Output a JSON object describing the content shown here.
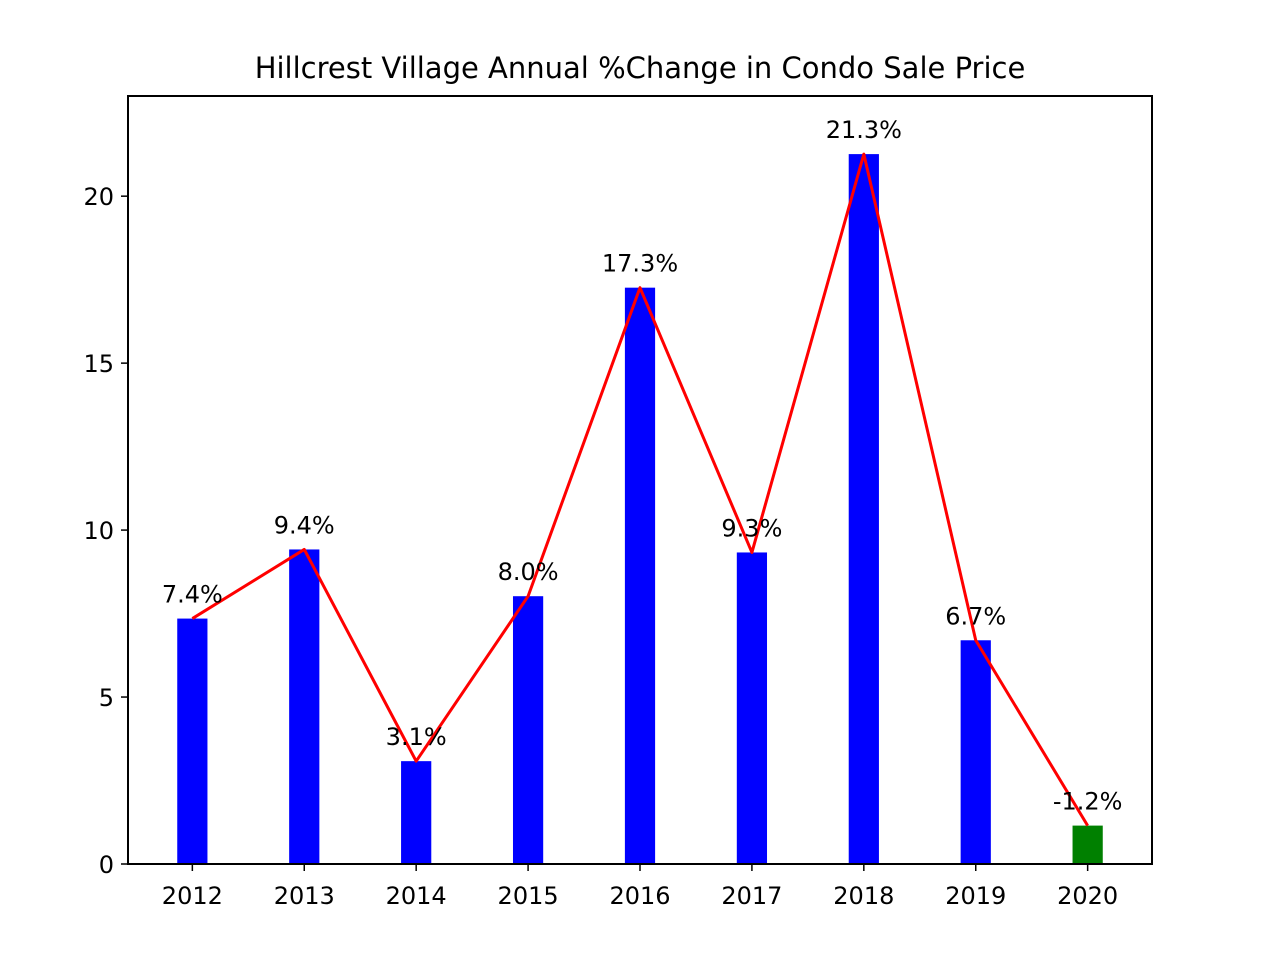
{
  "chart_data": {
    "type": "bar",
    "title": "Hillcrest Village Annual %Change in Condo Sale Price",
    "xlabel": "",
    "ylabel": "",
    "categories": [
      "2012",
      "2013",
      "2014",
      "2015",
      "2016",
      "2017",
      "2018",
      "2019",
      "2020"
    ],
    "values": [
      7.4,
      9.4,
      3.1,
      8.0,
      17.3,
      9.3,
      21.3,
      6.7,
      -1.2
    ],
    "bar_heights": [
      7.35,
      9.42,
      3.08,
      8.02,
      17.26,
      9.33,
      21.26,
      6.7,
      1.15
    ],
    "data_labels": [
      "7.4%",
      "9.4%",
      "3.1%",
      "8.0%",
      "17.3%",
      "9.3%",
      "21.3%",
      "6.7%",
      "-1.2%"
    ],
    "bar_colors": [
      "#0000ff",
      "#0000ff",
      "#0000ff",
      "#0000ff",
      "#0000ff",
      "#0000ff",
      "#0000ff",
      "#0000ff",
      "#008000"
    ],
    "line_color": "#ff0000",
    "ylim": [
      0,
      23
    ],
    "yticks": [
      0,
      5,
      10,
      15,
      20
    ],
    "grid": false,
    "legend": "none"
  }
}
